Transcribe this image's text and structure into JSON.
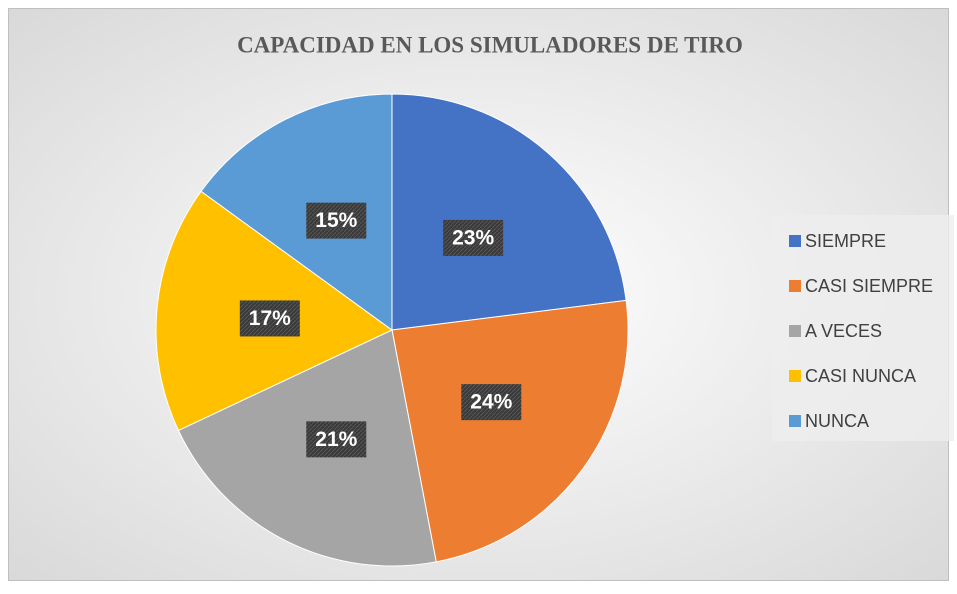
{
  "chart_data": {
    "type": "pie",
    "title": "CAPACIDAD EN LOS SIMULADORES DE TIRO",
    "categories": [
      "SIEMPRE",
      "CASI SIEMPRE",
      "A VECES",
      "CASI NUNCA",
      "NUNCA"
    ],
    "values": [
      23,
      24,
      21,
      17,
      15
    ],
    "value_labels": [
      "23%",
      "24%",
      "21%",
      "17%",
      "15%"
    ],
    "colors": [
      "#4472c4",
      "#ed7d31",
      "#a5a5a5",
      "#ffc000",
      "#5b9bd5"
    ],
    "legend": "right"
  }
}
